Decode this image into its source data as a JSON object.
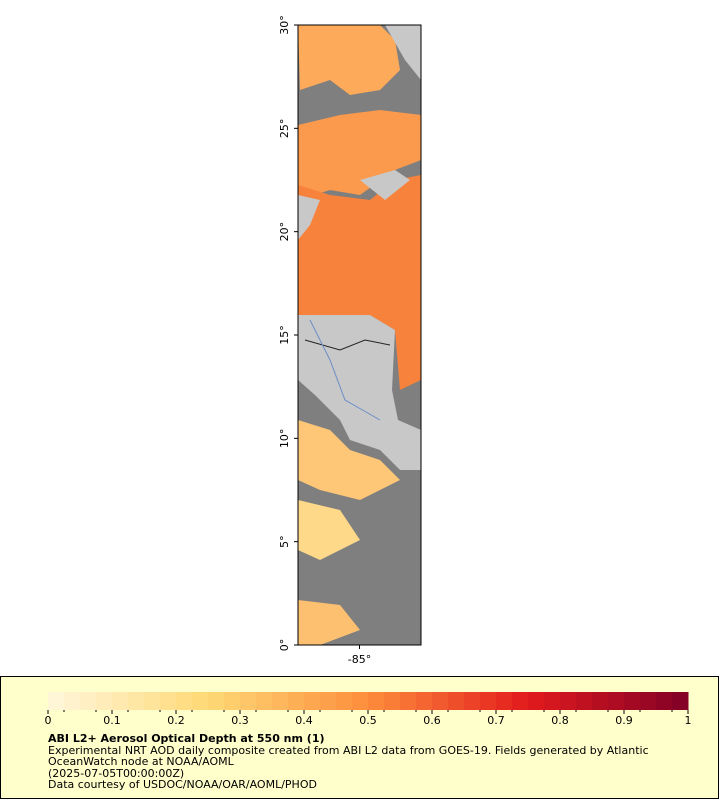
{
  "map": {
    "xlim": [
      -88,
      -82
    ],
    "xticks": [
      {
        "value": -85,
        "label": "-85°"
      }
    ],
    "ylim": [
      0,
      30
    ],
    "yticks": [
      {
        "value": 0,
        "label": "0°"
      },
      {
        "value": 5,
        "label": "5°"
      },
      {
        "value": 10,
        "label": "10°"
      },
      {
        "value": 15,
        "label": "15°"
      },
      {
        "value": 20,
        "label": "20°"
      },
      {
        "value": 25,
        "label": "25°"
      },
      {
        "value": 30,
        "label": "30°"
      }
    ]
  },
  "legend": {
    "title": "ABI L2+ Aerosol Optical Depth at 550 nm (1)",
    "lines": [
      "Experimental NRT AOD daily composite created from ABI L2 data from GOES-19. Fields generated by Atlantic",
      "OceanWatch node at NOAA/AOML",
      "(2025-07-05T00:00:00Z)",
      "Data courtesy of USDOC/NOAA/OAR/AOML/PHOD"
    ],
    "colorbar": {
      "range": [
        0,
        1
      ],
      "ticks": [
        0,
        0.1,
        0.2,
        0.3,
        0.4,
        0.5,
        0.6,
        0.7,
        0.8,
        0.9,
        1
      ],
      "colors": [
        "#fff6dc",
        "#fed976",
        "#fd8d3c",
        "#e31a1c",
        "#800026"
      ]
    }
  }
}
